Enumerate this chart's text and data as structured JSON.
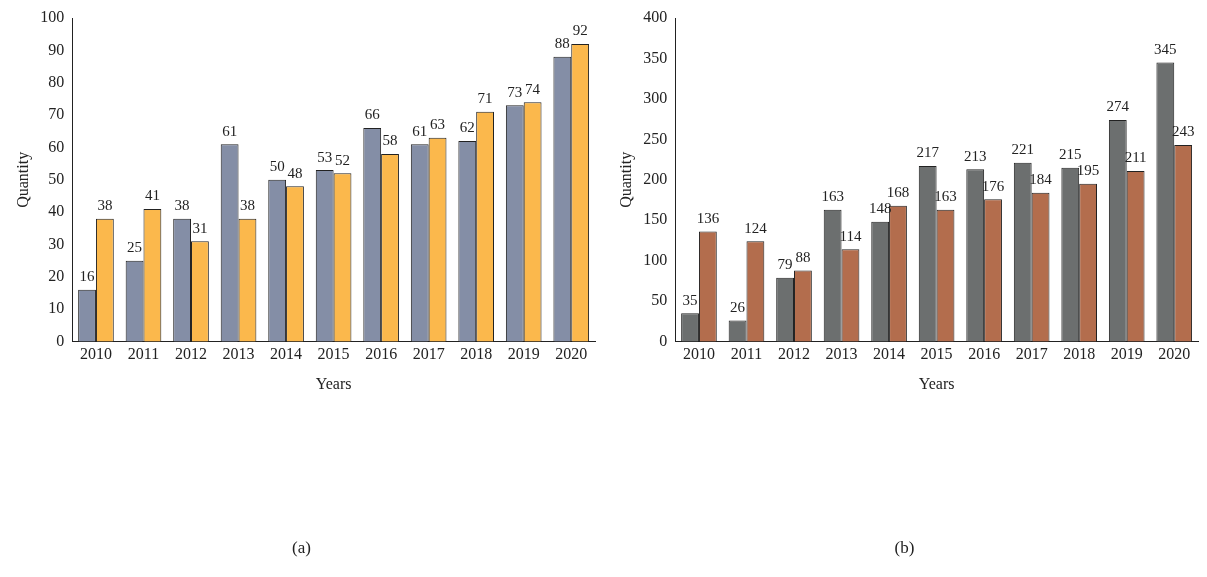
{
  "chart_data": [
    {
      "type": "bar",
      "xlabel": "Years",
      "ylabel": "Quantity",
      "categories": [
        "2010",
        "2011",
        "2012",
        "2013",
        "2014",
        "2015",
        "2016",
        "2017",
        "2018",
        "2019",
        "2020"
      ],
      "series": [
        {
          "color": "#848ea6",
          "values": [
            16,
            25,
            38,
            61,
            50,
            53,
            66,
            61,
            62,
            73,
            88
          ]
        },
        {
          "color": "#fbb84c",
          "values": [
            38,
            41,
            31,
            38,
            48,
            52,
            58,
            63,
            71,
            74,
            92
          ]
        }
      ],
      "ylim": [
        0,
        100
      ],
      "yticks": [
        0,
        10,
        20,
        30,
        40,
        50,
        60,
        70,
        80,
        90,
        100
      ],
      "grid": false,
      "legend": false,
      "data_labels": true,
      "annotations": [
        "(a)"
      ]
    },
    {
      "type": "bar",
      "xlabel": "Years",
      "ylabel": "Quantity",
      "categories": [
        "2010",
        "2011",
        "2012",
        "2013",
        "2014",
        "2015",
        "2016",
        "2017",
        "2018",
        "2019",
        "2020"
      ],
      "series": [
        {
          "color": "#6c6f6f",
          "values": [
            35,
            26,
            79,
            163,
            148,
            217,
            213,
            221,
            215,
            274,
            345
          ]
        },
        {
          "color": "#b36d4d",
          "values": [
            136,
            124,
            88,
            114,
            168,
            163,
            176,
            184,
            195,
            211,
            243
          ]
        }
      ],
      "ylim": [
        0,
        400
      ],
      "yticks": [
        0,
        50,
        100,
        150,
        200,
        250,
        300,
        350,
        400
      ],
      "grid": false,
      "legend": false,
      "data_labels": true,
      "annotations": [
        "(b)"
      ]
    }
  ]
}
